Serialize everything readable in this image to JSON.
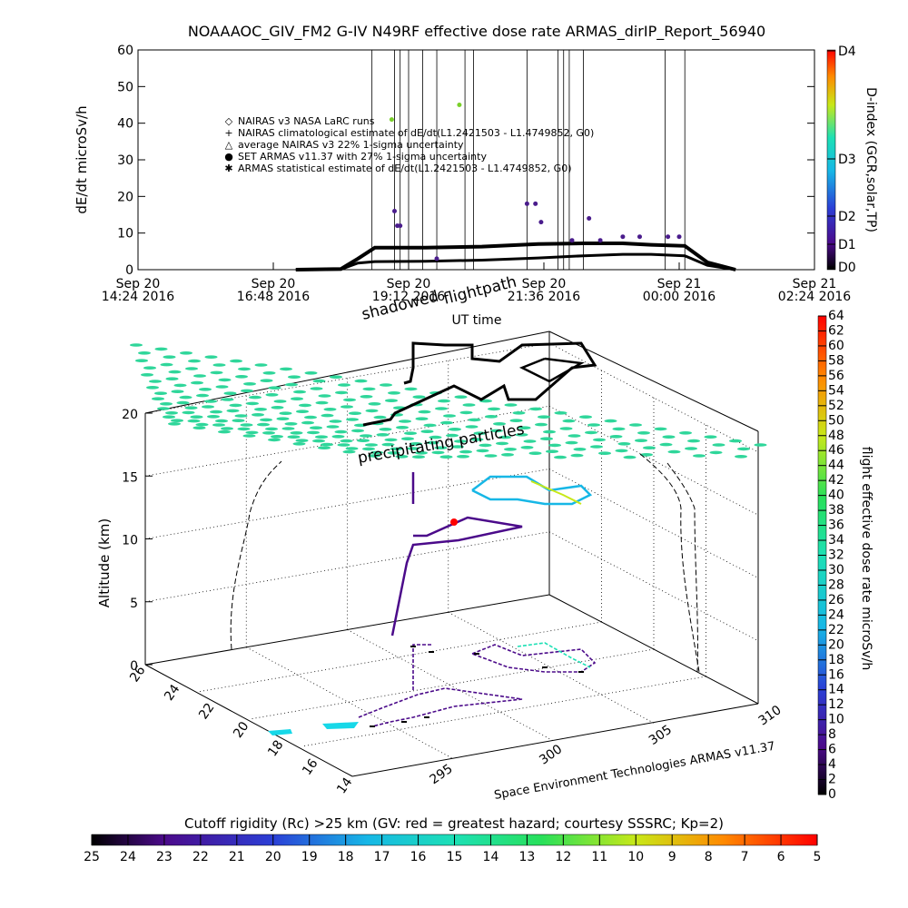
{
  "title": "NOAAAOC_GIV_FM2 G-IV    N49RF   effective dose rate ARMAS_dirIP_Report_56940",
  "chart_data": [
    {
      "type": "line",
      "ylabel": "dE/dt microSv/h",
      "ylim": [
        0,
        60
      ],
      "yticks": [
        "0",
        "10",
        "20",
        "30",
        "40",
        "50",
        "60"
      ],
      "xticks": [
        {
          "day": "Sep 20",
          "time": "14:24 2016"
        },
        {
          "day": "Sep 20",
          "time": "16:48 2016"
        },
        {
          "day": "Sep 20",
          "time": "19:12 2016"
        },
        {
          "day": "Sep 20",
          "time": "21:36 2016"
        },
        {
          "day": "Sep 21",
          "time": "00:00 2016"
        },
        {
          "day": "Sep 21",
          "time": "02:24 2016"
        }
      ],
      "xlabel": "UT time",
      "xlim_hours": [
        14.4,
        26.4
      ],
      "legend": [
        "NAIRAS v3 NASA LaRC runs",
        "NAIRAS climatological estimate of dE/dt(L1.2421503 - L1.4749852, G0)",
        "average NAIRAS v3 22% 1-sigma uncertainty",
        "SET ARMAS v11.37 with 27% 1-sigma uncertainty",
        "ARMAS statistical estimate of dE/dt(L1.2421503 - L1.4749852, G0)"
      ],
      "series": [
        {
          "name": "NAIRAS climatological estimate of dE/dt(L1.2421503 - L1.4749852, G0)",
          "x": [
            17.2,
            18.0,
            18.3,
            18.6,
            19.5,
            20.5,
            21.5,
            22.3,
            23.0,
            23.5,
            24.1,
            24.5,
            25.0
          ],
          "y": [
            0,
            0.2,
            3,
            6,
            6,
            6.3,
            7,
            7.2,
            7.2,
            6.8,
            6.5,
            2,
            0
          ]
        },
        {
          "name": "ARMAS statistical estimate of dE/dt(L1.2421503 - L1.4749852, G0)",
          "x": [
            17.2,
            18.0,
            18.3,
            18.6,
            19.5,
            20.5,
            21.5,
            22.3,
            23.0,
            23.5,
            24.1,
            24.5,
            25.0
          ],
          "y": [
            0,
            0.1,
            1.8,
            2.2,
            2.3,
            2.6,
            3.2,
            3.8,
            4.2,
            4.2,
            3.8,
            1.2,
            0
          ]
        },
        {
          "name": "SET ARMAS v11.37 with 27% 1-sigma uncertainty",
          "x": [
            18.9,
            18.95,
            19.0,
            19.05,
            19.7,
            20.1,
            21.3,
            21.45,
            21.55,
            22.1,
            22.4,
            22.6,
            23.0,
            23.3,
            23.8,
            24.0
          ],
          "y": [
            41,
            16,
            12,
            12,
            3,
            45,
            18,
            18,
            13,
            8,
            14,
            8,
            9,
            9,
            9,
            9
          ]
        }
      ],
      "d_index_scale": {
        "label": "D-index (GCR,solar,TP)",
        "ticks": [
          "D0",
          "D1",
          "D2",
          "D3",
          "D4"
        ]
      }
    },
    {
      "type": "scatter",
      "title": "flightpath",
      "annotations": [
        "shadowed",
        "precipitating particles",
        "Space Environment Technologies ARMAS v11.37"
      ],
      "zlabel": "Altitude (km)",
      "zticks": [
        "0",
        "5",
        "10",
        "15",
        "20"
      ],
      "lat_ticks": [
        "14",
        "16",
        "18",
        "20",
        "22",
        "24",
        "26"
      ],
      "lon_ticks": [
        "295",
        "300",
        "305",
        "310"
      ],
      "colorbar": {
        "label": "flight effective dose rate microSv/h",
        "ticks": [
          "0",
          "2",
          "4",
          "6",
          "8",
          "10",
          "12",
          "14",
          "16",
          "18",
          "20",
          "22",
          "24",
          "26",
          "28",
          "30",
          "32",
          "34",
          "36",
          "38",
          "40",
          "42",
          "44",
          "46",
          "48",
          "50",
          "52",
          "54",
          "56",
          "58",
          "60",
          "62",
          "64"
        ]
      }
    }
  ],
  "cutoff_bar": {
    "label": "Cutoff rigidity (Rc) >25 km (GV: red = greatest hazard; courtesy SSSRC; Kp=2)",
    "ticks": [
      "25",
      "24",
      "23",
      "22",
      "21",
      "20",
      "19",
      "18",
      "17",
      "16",
      "15",
      "14",
      "13",
      "12",
      "11",
      "10",
      "9",
      "8",
      "7",
      "6",
      "5"
    ]
  },
  "colors": {
    "series_dark": "#000000",
    "armas_points": "#4a1c8c",
    "grid_ellipses": "#2fd69a"
  }
}
